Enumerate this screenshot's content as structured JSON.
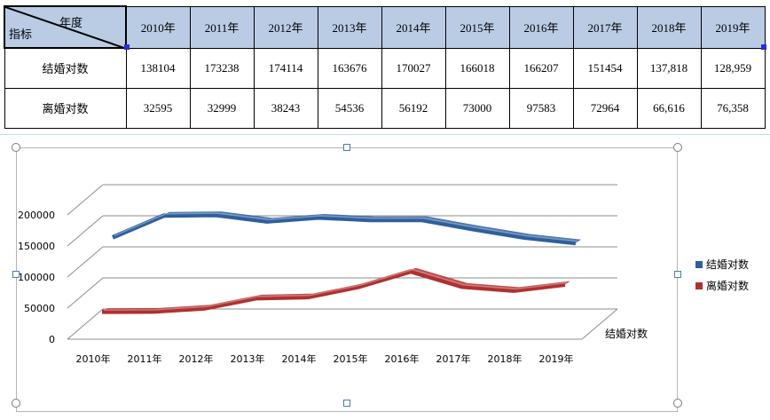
{
  "table": {
    "corner_top": "年度",
    "corner_bottom": "指标",
    "years": [
      "2010年",
      "2011年",
      "2012年",
      "2013年",
      "2014年",
      "2015年",
      "2016年",
      "2017年",
      "2018年",
      "2019年"
    ],
    "rows": [
      {
        "label": "结婚对数",
        "values": [
          "138104",
          "173238",
          "174114",
          "163676",
          "170027",
          "166018",
          "166207",
          "151454",
          "137,818",
          "128,959"
        ]
      },
      {
        "label": "离婚对数",
        "values": [
          "32595",
          "32999",
          "38243",
          "54536",
          "56192",
          "73000",
          "97583",
          "72964",
          "66,616",
          "76,358"
        ]
      }
    ]
  },
  "chart_data": {
    "type": "line",
    "style": "3d-ribbon",
    "categories": [
      "2010年",
      "2011年",
      "2012年",
      "2013年",
      "2014年",
      "2015年",
      "2016年",
      "2017年",
      "2018年",
      "2019年"
    ],
    "series": [
      {
        "name": "结婚对数",
        "color": "#2e5f9e",
        "values": [
          138104,
          173238,
          174114,
          163676,
          170027,
          166018,
          166207,
          151454,
          137818,
          128959
        ]
      },
      {
        "name": "离婚对数",
        "color": "#b03030",
        "values": [
          32595,
          32999,
          38243,
          54536,
          56192,
          73000,
          97583,
          72964,
          66616,
          76358
        ]
      }
    ],
    "yticks": [
      "0",
      "50000",
      "100000",
      "150000",
      "200000"
    ],
    "ylim": [
      0,
      200000
    ],
    "depth_label": "结婚对数",
    "grid": true,
    "legend_position": "right"
  }
}
